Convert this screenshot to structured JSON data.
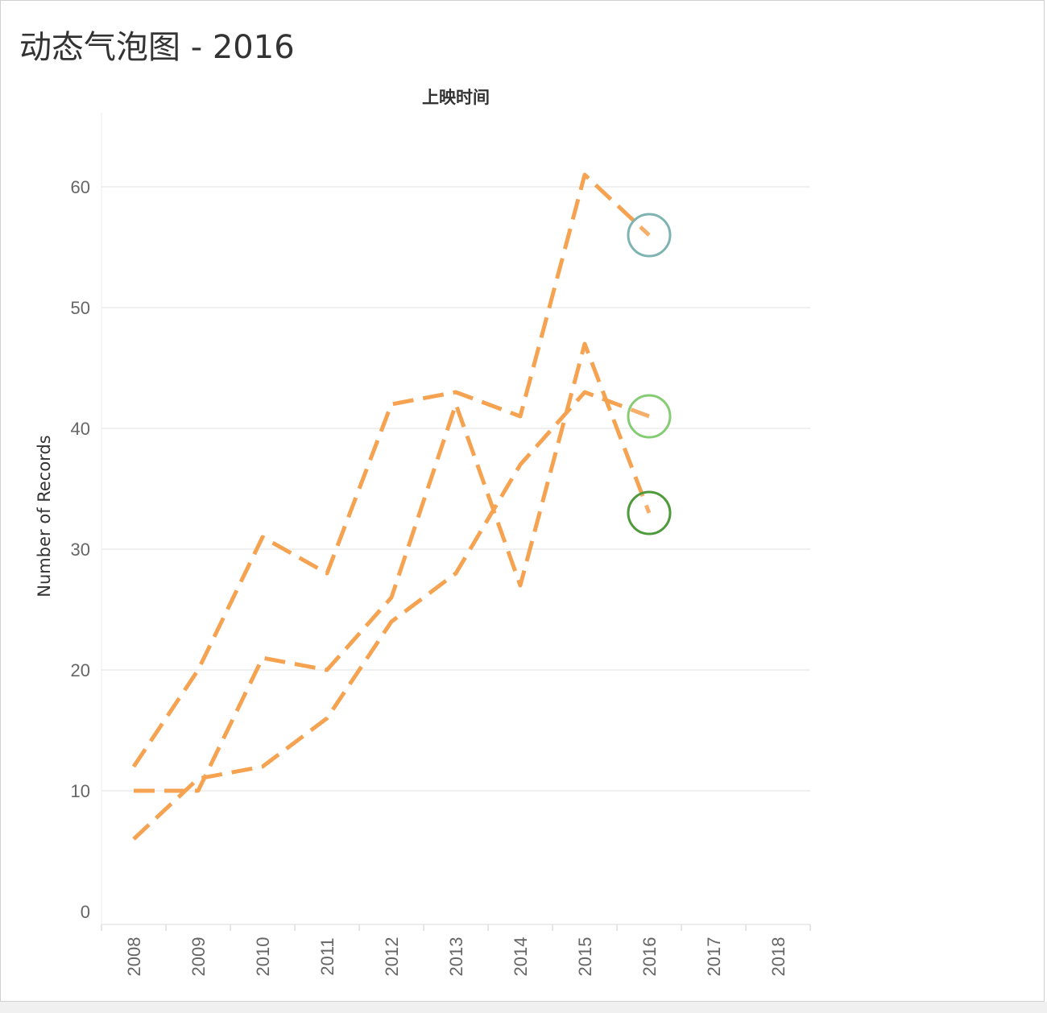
{
  "title": "动态气泡图 - 2016",
  "chart_data": {
    "type": "line",
    "title": "动态气泡图 - 2016",
    "x_header": "上映时间",
    "xlabel": "",
    "ylabel": "Number of Records",
    "categories": [
      "2008",
      "2009",
      "2010",
      "2011",
      "2012",
      "2013",
      "2014",
      "2015",
      "2016",
      "2017",
      "2018"
    ],
    "y_ticks": [
      "0",
      "10",
      "20",
      "30",
      "40",
      "50",
      "60"
    ],
    "ylim": [
      0,
      65
    ],
    "grid": true,
    "line_style": "dashed",
    "line_color": "#f5a251",
    "series": [
      {
        "x": [
          "2008",
          "2009",
          "2010",
          "2011",
          "2012",
          "2013",
          "2014",
          "2015",
          "2016"
        ],
        "values": [
          12,
          20,
          31,
          28,
          42,
          43,
          41,
          61,
          56
        ],
        "end_marker_color": "#7fb3b2"
      },
      {
        "x": [
          "2008",
          "2009",
          "2010",
          "2011",
          "2012",
          "2013",
          "2014",
          "2015",
          "2016"
        ],
        "values": [
          6,
          11,
          12,
          16,
          24,
          28,
          37,
          43,
          41
        ],
        "end_marker_color": "#86cc74"
      },
      {
        "x": [
          "2008",
          "2009",
          "2010",
          "2011",
          "2012",
          "2013",
          "2014",
          "2015",
          "2016"
        ],
        "values": [
          10,
          10,
          21,
          20,
          26,
          42,
          27,
          47,
          33
        ],
        "end_marker_color": "#4e9a3c"
      }
    ]
  }
}
